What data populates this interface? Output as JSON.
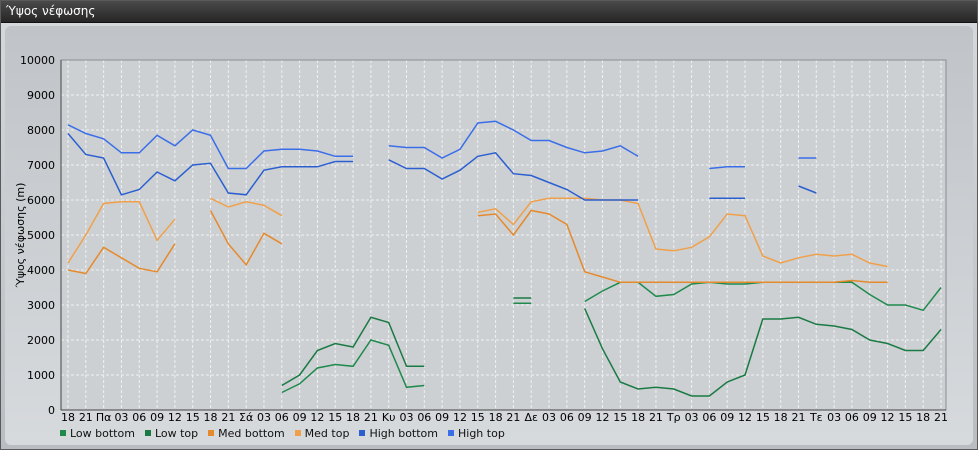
{
  "window": {
    "title": "Ύψος νέφωσης"
  },
  "chart_data": {
    "type": "line",
    "ylabel": "Ύψος νέφωσης (m)",
    "ylim": [
      0,
      10000
    ],
    "yticks": [
      0,
      1000,
      2000,
      3000,
      4000,
      5000,
      6000,
      7000,
      8000,
      9000,
      10000
    ],
    "grid": true,
    "legend": "bottom-left",
    "x": [
      "18",
      "21",
      "Πα",
      "03",
      "06",
      "09",
      "12",
      "15",
      "18",
      "21",
      "Σά",
      "03",
      "06",
      "09",
      "12",
      "15",
      "18",
      "21",
      "Κυ",
      "03",
      "06",
      "09",
      "12",
      "15",
      "18",
      "21",
      "Δε",
      "03",
      "06",
      "09",
      "12",
      "15",
      "18",
      "21",
      "Τρ",
      "03",
      "06",
      "09",
      "12",
      "15",
      "18",
      "21",
      "Τε",
      "03",
      "06",
      "09",
      "12",
      "15",
      "18",
      "21"
    ],
    "series": [
      {
        "name": "Low bottom",
        "color": "#1f8a4c",
        "values": [
          null,
          null,
          null,
          null,
          null,
          null,
          null,
          null,
          null,
          null,
          null,
          null,
          500,
          750,
          1200,
          1300,
          1250,
          2000,
          1850,
          650,
          700,
          null,
          null,
          null,
          null,
          3050,
          3050,
          null,
          null,
          3100,
          3400,
          3650,
          3650,
          3250,
          3300,
          3600,
          3650,
          3600,
          3600,
          3650,
          3650,
          3650,
          3650,
          3650,
          3650,
          3300,
          3000,
          3000,
          2850,
          3500
        ]
      },
      {
        "name": "Low top",
        "color": "#1a7a44",
        "values": [
          null,
          null,
          null,
          null,
          null,
          null,
          null,
          null,
          null,
          null,
          null,
          null,
          700,
          1000,
          1700,
          1900,
          1800,
          2650,
          2500,
          1250,
          1250,
          null,
          null,
          null,
          null,
          3200,
          3200,
          null,
          null,
          2900,
          1750,
          800,
          600,
          650,
          600,
          400,
          400,
          800,
          1000,
          2600,
          2600,
          2650,
          2450,
          2400,
          2300,
          2000,
          1900,
          1700,
          1700,
          2300
        ]
      },
      {
        "name": "Med bottom",
        "color": "#e58a2c",
        "values": [
          4000,
          3900,
          4650,
          4350,
          4050,
          3950,
          4750,
          null,
          5700,
          4750,
          4150,
          5050,
          4750,
          null,
          null,
          null,
          null,
          null,
          null,
          null,
          null,
          null,
          null,
          5550,
          5600,
          5000,
          5700,
          5600,
          5300,
          3950,
          3800,
          3650,
          3650,
          3650,
          3650,
          3650,
          3650,
          3650,
          3650,
          3650,
          3650,
          3650,
          3650,
          3650,
          3700,
          3650,
          3650,
          null,
          null,
          null
        ]
      },
      {
        "name": "Med top",
        "color": "#f0a04a",
        "values": [
          4200,
          5000,
          5900,
          5950,
          5950,
          4850,
          5450,
          null,
          6050,
          5800,
          5950,
          5850,
          5550,
          null,
          null,
          null,
          null,
          null,
          null,
          null,
          null,
          null,
          null,
          5650,
          5750,
          5300,
          5950,
          6050,
          6050,
          6050,
          6000,
          6000,
          5900,
          4600,
          4550,
          4650,
          4950,
          5600,
          5550,
          4400,
          4200,
          4350,
          4450,
          4400,
          4450,
          4200,
          4100,
          null,
          null,
          null
        ]
      },
      {
        "name": "High bottom",
        "color": "#2b5fd0",
        "values": [
          7900,
          7300,
          7200,
          6150,
          6300,
          6800,
          6550,
          7000,
          7050,
          6200,
          6150,
          6850,
          6950,
          6950,
          6950,
          7100,
          7100,
          null,
          7150,
          6900,
          6900,
          6600,
          6850,
          7250,
          7350,
          6750,
          6700,
          6500,
          6300,
          6000,
          6000,
          6000,
          6000,
          null,
          null,
          null,
          6050,
          6050,
          6050,
          null,
          null,
          6400,
          6200,
          null,
          null,
          null,
          null,
          null,
          null,
          null
        ]
      },
      {
        "name": "High top",
        "color": "#3a6ee8",
        "values": [
          8150,
          7900,
          7750,
          7350,
          7350,
          7850,
          7550,
          8000,
          7850,
          6900,
          6900,
          7400,
          7450,
          7450,
          7400,
          7250,
          7250,
          null,
          7550,
          7500,
          7500,
          7200,
          7450,
          8200,
          8250,
          8000,
          7700,
          7700,
          7500,
          7350,
          7400,
          7550,
          7250,
          null,
          null,
          null,
          6900,
          6950,
          6950,
          null,
          null,
          7200,
          7200,
          null,
          null,
          null,
          null,
          null,
          null,
          null
        ]
      }
    ]
  }
}
